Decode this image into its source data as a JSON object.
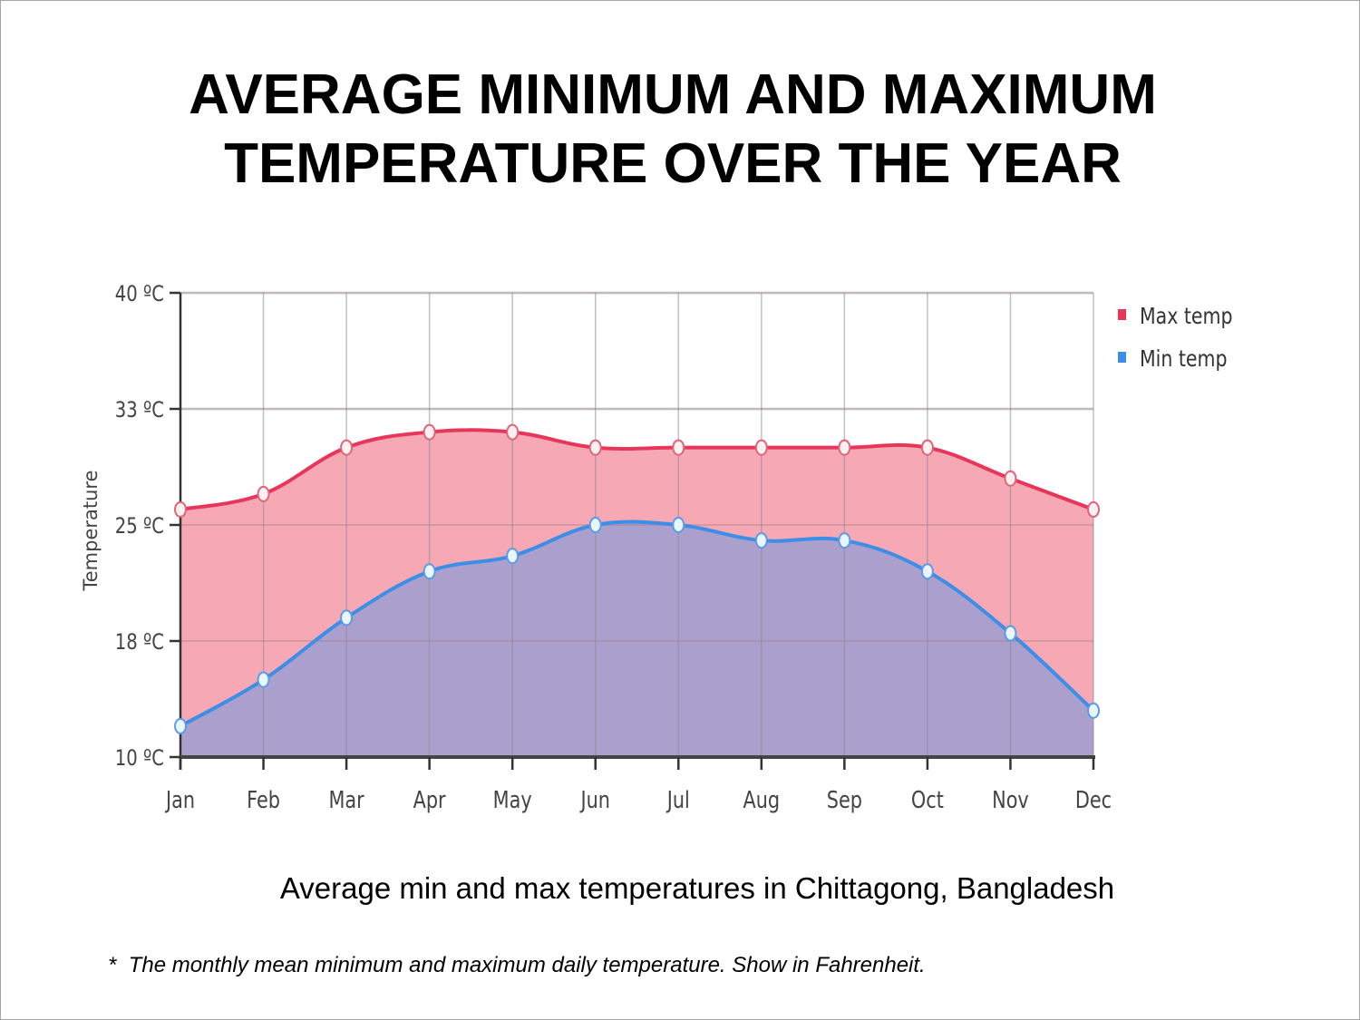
{
  "slide": {
    "title_line1": "AVERAGE MINIMUM AND MAXIMUM",
    "title_line2": "TEMPERATURE OVER THE YEAR",
    "caption": "Average min and max temperatures in Chittagong, Bangladesh",
    "footnote_marker": "*",
    "footnote": "The monthly mean minimum and maximum daily temperature. Show in Fahrenheit."
  },
  "chart_data": {
    "type": "area",
    "title": "",
    "xlabel": "",
    "ylabel": "Temperature",
    "categories": [
      "Jan",
      "Feb",
      "Mar",
      "Apr",
      "May",
      "Jun",
      "Jul",
      "Aug",
      "Sep",
      "Oct",
      "Nov",
      "Dec"
    ],
    "ylim": [
      10,
      40
    ],
    "yticks": [
      10,
      17.5,
      25,
      32.5,
      40
    ],
    "ytick_labels": [
      "10 ºC",
      "18 ºC",
      "25 ºC",
      "33 ºC",
      "40 ºC"
    ],
    "grid": true,
    "legend_position": "top-right",
    "series": [
      {
        "name": "Max temp",
        "color": "#e8365a",
        "fill": "#f6a9b4",
        "values": [
          26,
          27,
          30,
          31,
          31,
          30,
          30,
          30,
          30,
          30,
          28,
          26
        ]
      },
      {
        "name": "Min temp",
        "color": "#3d8ee6",
        "fill": "#ab9fcd",
        "values": [
          12,
          15,
          19,
          22,
          23,
          25,
          25,
          24,
          24,
          22,
          18,
          13
        ]
      }
    ]
  }
}
